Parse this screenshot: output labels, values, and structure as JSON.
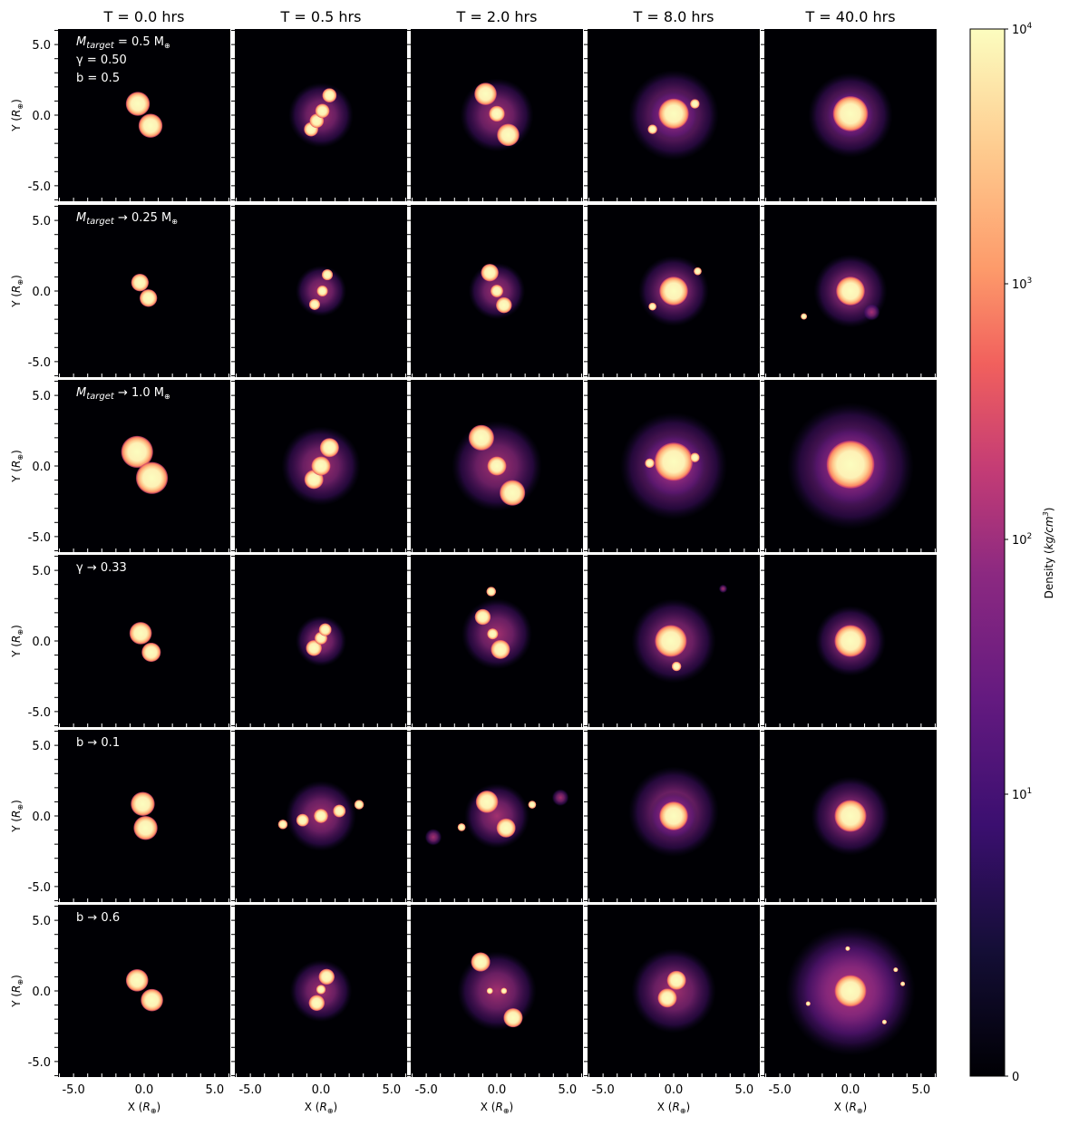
{
  "chart_data": {
    "type": "heatmap",
    "description_units": "blobs listed as [x, y, radius, kind] in R⊕ data units; kind core=dense body, haze=diffuse debris",
    "column_titles": [
      "T = 0.0 hrs",
      "T = 0.5 hrs",
      "T = 2.0 hrs",
      "T = 8.0 hrs",
      "T = 40.0 hrs"
    ],
    "xlabel": {
      "pre": "X (",
      "sym": "R",
      "sub": "⊕",
      "post": ")"
    },
    "ylabel": {
      "pre": "Y (",
      "sym": "R",
      "sub": "⊕",
      "post": ")"
    },
    "xlim": [
      -6.1,
      6.1
    ],
    "ylim": [
      -6.1,
      6.1
    ],
    "tick_labels": [
      "-5.0",
      "0.0",
      "5.0"
    ],
    "tick_values": [
      -5,
      0,
      5
    ],
    "minor_tick_step": 1,
    "colorbar": {
      "label": {
        "pre": "Density (",
        "main": "kg/cm",
        "sup": "3",
        "post": ")"
      },
      "scale": "symlog",
      "ticks": [
        {
          "base": "10",
          "exp": "4",
          "value": 10000
        },
        {
          "base": "10",
          "exp": "3",
          "value": 1000
        },
        {
          "base": "10",
          "exp": "2",
          "value": 100
        },
        {
          "base": "10",
          "exp": "1",
          "value": 10
        },
        {
          "base": "0",
          "exp": "",
          "value": 0
        }
      ],
      "colormap": "magma"
    },
    "rows": [
      {
        "annotation": [
          {
            "main": "M",
            "sub": "target",
            "rest": " = 0.5 M",
            "rsub": "⊕"
          },
          {
            "main": "γ = 0.50",
            "sub": "",
            "rest": "",
            "rsub": ""
          },
          {
            "main": "b = 0.5",
            "sub": "",
            "rest": "",
            "rsub": ""
          }
        ],
        "panels": [
          [
            [
              -0.45,
              0.8,
              0.75,
              "core"
            ],
            [
              0.45,
              -0.75,
              0.75,
              "core"
            ]
          ],
          [
            [
              0,
              0,
              2.3,
              "haze"
            ],
            [
              -0.7,
              -1.0,
              0.45,
              "core"
            ],
            [
              -0.3,
              -0.4,
              0.45,
              "core"
            ],
            [
              0.1,
              0.3,
              0.45,
              "core"
            ],
            [
              0.6,
              1.4,
              0.45,
              "core"
            ]
          ],
          [
            [
              0,
              0,
              2.6,
              "haze"
            ],
            [
              -0.8,
              1.5,
              0.7,
              "core"
            ],
            [
              0,
              0.1,
              0.5,
              "core"
            ],
            [
              0.8,
              -1.4,
              0.7,
              "core"
            ]
          ],
          [
            [
              0,
              0,
              3.2,
              "haze"
            ],
            [
              0,
              0,
              1.8,
              "haze"
            ],
            [
              0,
              0.1,
              0.95,
              "core"
            ],
            [
              -1.5,
              -1.0,
              0.3,
              "core"
            ],
            [
              1.5,
              0.8,
              0.3,
              "core"
            ]
          ],
          [
            [
              0,
              0,
              3.0,
              "haze"
            ],
            [
              0,
              0,
              1.8,
              "haze"
            ],
            [
              0,
              0.1,
              1.1,
              "core"
            ]
          ]
        ]
      },
      {
        "annotation": [
          {
            "main": "M",
            "sub": "target",
            "rest": " → 0.25 M",
            "rsub": "⊕"
          }
        ],
        "panels": [
          [
            [
              -0.3,
              0.6,
              0.55,
              "core"
            ],
            [
              0.3,
              -0.5,
              0.55,
              "core"
            ]
          ],
          [
            [
              0,
              0,
              1.8,
              "haze"
            ],
            [
              -0.45,
              -0.95,
              0.35,
              "core"
            ],
            [
              0.1,
              0,
              0.35,
              "core"
            ],
            [
              0.45,
              1.15,
              0.35,
              "core"
            ]
          ],
          [
            [
              0,
              0,
              2.0,
              "haze"
            ],
            [
              -0.5,
              1.3,
              0.55,
              "core"
            ],
            [
              0,
              0,
              0.4,
              "core"
            ],
            [
              0.5,
              -1.0,
              0.5,
              "core"
            ]
          ],
          [
            [
              0,
              0,
              2.5,
              "haze"
            ],
            [
              0,
              0,
              0.9,
              "core"
            ],
            [
              -1.5,
              -1.1,
              0.25,
              "core"
            ],
            [
              1.7,
              1.4,
              0.25,
              "core"
            ]
          ],
          [
            [
              0,
              0,
              2.6,
              "haze"
            ],
            [
              0,
              0,
              0.9,
              "core"
            ],
            [
              -3.3,
              -1.8,
              0.2,
              "core"
            ],
            [
              1.5,
              -1.5,
              0.6,
              "haze"
            ]
          ]
        ]
      },
      {
        "annotation": [
          {
            "main": "M",
            "sub": "target",
            "rest": " → 1.0 M",
            "rsub": "⊕"
          }
        ],
        "panels": [
          [
            [
              -0.5,
              1.0,
              1.0,
              "core"
            ],
            [
              0.55,
              -0.85,
              1.0,
              "core"
            ]
          ],
          [
            [
              0,
              0,
              2.8,
              "haze"
            ],
            [
              -0.5,
              -0.95,
              0.6,
              "core"
            ],
            [
              0,
              0,
              0.6,
              "core"
            ],
            [
              0.6,
              1.3,
              0.6,
              "core"
            ]
          ],
          [
            [
              0,
              0,
              3.2,
              "haze"
            ],
            [
              -1.1,
              2.0,
              0.8,
              "core"
            ],
            [
              0,
              0,
              0.6,
              "core"
            ],
            [
              1.1,
              -1.9,
              0.8,
              "core"
            ]
          ],
          [
            [
              0,
              0,
              3.8,
              "haze"
            ],
            [
              0,
              0,
              2.4,
              "haze"
            ],
            [
              0,
              0.3,
              1.2,
              "core"
            ],
            [
              -1.7,
              0.2,
              0.3,
              "core"
            ],
            [
              1.5,
              0.6,
              0.3,
              "core"
            ]
          ],
          [
            [
              0,
              0,
              4.5,
              "haze"
            ],
            [
              0,
              0,
              3.0,
              "haze"
            ],
            [
              0,
              0.1,
              1.5,
              "core"
            ]
          ]
        ]
      },
      {
        "annotation": [
          {
            "main": "γ → 0.33",
            "sub": "",
            "rest": "",
            "rsub": ""
          }
        ],
        "panels": [
          [
            [
              -0.25,
              0.55,
              0.7,
              "core"
            ],
            [
              0.5,
              -0.8,
              0.6,
              "core"
            ]
          ],
          [
            [
              0,
              0,
              1.8,
              "haze"
            ],
            [
              -0.5,
              -0.5,
              0.5,
              "core"
            ],
            [
              0,
              0.2,
              0.4,
              "core"
            ],
            [
              0.3,
              0.8,
              0.4,
              "core"
            ]
          ],
          [
            [
              0,
              0.5,
              2.5,
              "haze"
            ],
            [
              -1.0,
              1.7,
              0.5,
              "core"
            ],
            [
              -0.4,
              3.5,
              0.3,
              "core"
            ],
            [
              -0.3,
              0.5,
              0.35,
              "core"
            ],
            [
              0.25,
              -0.6,
              0.6,
              "core"
            ]
          ],
          [
            [
              0,
              0,
              3.0,
              "haze"
            ],
            [
              -0.2,
              0,
              1.0,
              "core"
            ],
            [
              0.2,
              -1.8,
              0.3,
              "core"
            ],
            [
              3.5,
              3.7,
              0.3,
              "haze"
            ]
          ],
          [
            [
              0,
              0,
              2.5,
              "haze"
            ],
            [
              0,
              0,
              1.0,
              "core"
            ]
          ]
        ]
      },
      {
        "annotation": [
          {
            "main": "b → 0.1",
            "sub": "",
            "rest": "",
            "rsub": ""
          }
        ],
        "panels": [
          [
            [
              -0.1,
              0.85,
              0.75,
              "core"
            ],
            [
              0.1,
              -0.85,
              0.75,
              "core"
            ]
          ],
          [
            [
              0,
              0,
              2.5,
              "haze"
            ],
            [
              -2.7,
              -0.6,
              0.3,
              "core"
            ],
            [
              -1.3,
              -0.3,
              0.4,
              "core"
            ],
            [
              0,
              0,
              0.45,
              "core"
            ],
            [
              1.3,
              0.35,
              0.4,
              "core"
            ],
            [
              2.7,
              0.8,
              0.3,
              "core"
            ]
          ],
          [
            [
              0,
              0,
              2.3,
              "haze"
            ],
            [
              -4.5,
              -1.5,
              0.6,
              "haze"
            ],
            [
              4.5,
              1.3,
              0.6,
              "haze"
            ],
            [
              -0.7,
              1.0,
              0.7,
              "core"
            ],
            [
              0.65,
              -0.85,
              0.6,
              "core"
            ],
            [
              -2.5,
              -0.8,
              0.25,
              "core"
            ],
            [
              2.5,
              0.8,
              0.25,
              "core"
            ]
          ],
          [
            [
              0,
              0.3,
              3.2,
              "haze"
            ],
            [
              0,
              0,
              1.7,
              "haze"
            ],
            [
              0,
              0,
              0.9,
              "core"
            ]
          ],
          [
            [
              0,
              0,
              2.8,
              "haze"
            ],
            [
              0,
              0,
              1.0,
              "core"
            ]
          ]
        ]
      },
      {
        "annotation": [
          {
            "main": "b → 0.6",
            "sub": "",
            "rest": "",
            "rsub": ""
          }
        ],
        "panels": [
          [
            [
              -0.5,
              0.75,
              0.7,
              "core"
            ],
            [
              0.55,
              -0.65,
              0.7,
              "core"
            ]
          ],
          [
            [
              0,
              0,
              2.2,
              "haze"
            ],
            [
              -0.3,
              -0.85,
              0.5,
              "core"
            ],
            [
              0.4,
              1.0,
              0.5,
              "core"
            ],
            [
              0,
              0.1,
              0.3,
              "core"
            ]
          ],
          [
            [
              0,
              0,
              2.8,
              "haze"
            ],
            [
              -1.15,
              2.05,
              0.6,
              "core"
            ],
            [
              1.15,
              -1.9,
              0.6,
              "core"
            ],
            [
              -0.5,
              0,
              0.2,
              "core"
            ],
            [
              0.5,
              0,
              0.2,
              "core"
            ]
          ],
          [
            [
              0,
              0,
              3.0,
              "haze"
            ],
            [
              0.2,
              0.75,
              0.6,
              "core"
            ],
            [
              -0.45,
              -0.5,
              0.6,
              "core"
            ]
          ],
          [
            [
              0,
              0,
              4.6,
              "haze"
            ],
            [
              0,
              0,
              3.8,
              "haze"
            ],
            [
              0,
              0,
              1.0,
              "core"
            ],
            [
              3.2,
              1.5,
              0.15,
              "core"
            ],
            [
              -3.0,
              -0.9,
              0.15,
              "core"
            ],
            [
              -0.2,
              3.0,
              0.15,
              "core"
            ],
            [
              2.4,
              -2.2,
              0.15,
              "core"
            ],
            [
              3.7,
              0.5,
              0.15,
              "core"
            ]
          ]
        ]
      }
    ]
  }
}
